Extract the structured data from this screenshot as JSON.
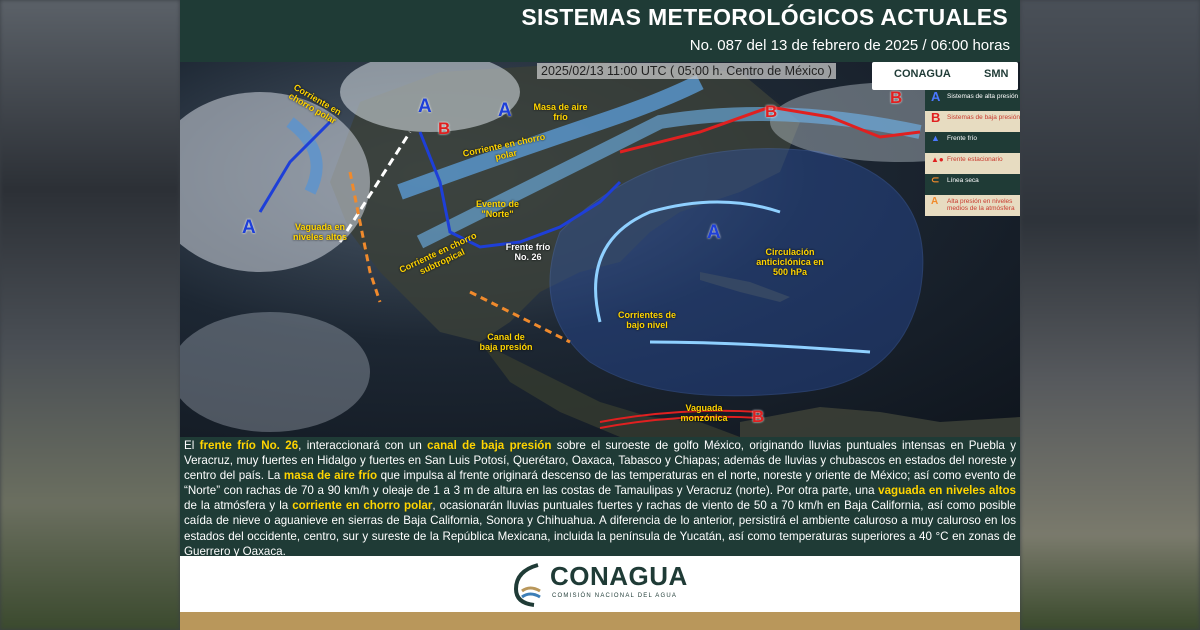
{
  "header": {
    "title": "SISTEMAS METEOROLÓGICOS ACTUALES",
    "subtitle": "No. 087 del 13 de febrero de 2025 / 06:00 horas"
  },
  "map": {
    "timestamp": "2025/02/13 11:00 UTC ( 05:00 h. Centro de México )",
    "logos": {
      "left": "CONAGUA",
      "right": "SMN"
    },
    "legend": [
      {
        "symbol": "A",
        "text": "Sistemas de alta presión"
      },
      {
        "symbol": "B",
        "text": "Sistemas de baja presión"
      },
      {
        "symbol": "▲",
        "text": "Frente frío"
      },
      {
        "symbol": "▲●",
        "text": "Frente estacionario"
      },
      {
        "symbol": "⊂",
        "text": "Línea seca"
      },
      {
        "symbol": "A",
        "text": "Alta presión en niveles medios de la atmósfera"
      }
    ],
    "labels": {
      "polar_nw": "Corriente en chorro polar",
      "polar_center": "Corriente en chorro polar",
      "subtropical": "Corriente en chorro subtropical",
      "cold_air": "Masa de aire frío",
      "norte": "Evento de \"Norte\"",
      "front": "Frente frío No. 26",
      "trough_high": "Vaguada en niveles altos",
      "low_channel": "Canal de baja presión",
      "low_currents": "Corrientes de bajo nivel",
      "anticyclone": "Circulación anticiclónica en 500 hPa",
      "monsoon": "Vaguada monzónica"
    },
    "systems": {
      "high": "A",
      "low": "B"
    },
    "colors": {
      "header": "#1f3b36",
      "highlight": "#ffd400",
      "high": "#1e3fd8",
      "low": "#e02020",
      "footer_stripe": "#b9975b"
    }
  },
  "description": {
    "p1": "El ",
    "h1": "frente frío No. 26",
    "p2": ", interaccionará con un ",
    "h2": "canal de baja presión",
    "p3": " sobre el suroeste de golfo México, originando lluvias puntuales intensas en Puebla y Veracruz, muy fuertes en Hidalgo y fuertes en San Luis Potosí, Querétaro, Oaxaca, Tabasco y Chiapas; además de lluvias y chubascos en estados del noreste y centro del país. La ",
    "h3": "masa de aire frío",
    "p4": " que impulsa al frente originará descenso de las temperaturas en el norte, noreste y oriente de México; así como evento de “Norte” con rachas de 70 a 90 km/h y oleaje de 1 a 3 m de altura en las costas de Tamaulipas y Veracruz (norte). Por otra parte, una ",
    "h4": "vaguada en niveles altos",
    "p5": " de la atmósfera y la ",
    "h5": "corriente en chorro polar",
    "p6": ", ocasionarán lluvias puntuales fuertes y rachas de viento de 50 a 70 km/h en Baja California, así como posible caída de nieve o aguanieve en sierras de Baja California, Sonora y Chihuahua. A diferencia de lo anterior, persistirá el ambiente caluroso a muy caluroso en los estados del occidente, centro, sur y sureste de la República Mexicana, incluida la península de Yucatán, así como temperaturas superiores a 40 °C en zonas de Guerrero y Oaxaca."
  },
  "footer": {
    "brand": "CONAGUA",
    "tagline": "COMISIÓN NACIONAL DEL AGUA"
  }
}
